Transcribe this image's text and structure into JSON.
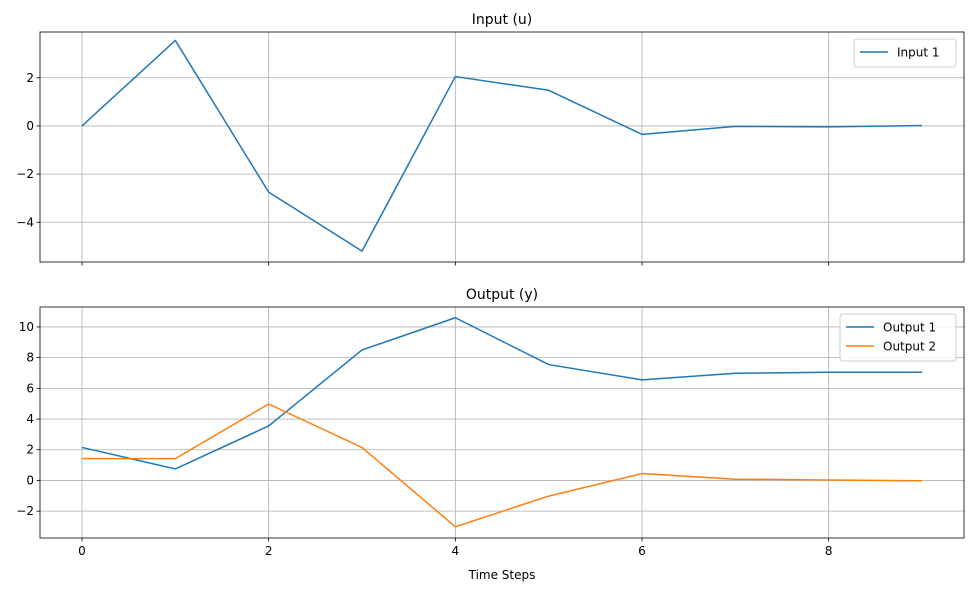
{
  "chart_data": [
    {
      "type": "line",
      "title": "Input (u)",
      "xlabel": "",
      "ylabel": "",
      "x": [
        0,
        1,
        2,
        3,
        4,
        5,
        6,
        7,
        8,
        9
      ],
      "xlim": [
        -0.45,
        9.45
      ],
      "ylim": [
        -5.65,
        3.9
      ],
      "xticks": [
        0,
        2,
        4,
        6,
        8
      ],
      "yticks": [
        -4,
        -2,
        0,
        2
      ],
      "show_xtick_labels": false,
      "grid": true,
      "legend": "top-right",
      "series": [
        {
          "name": "Input 1",
          "color": "#1f77b4",
          "values": [
            0.0,
            3.55,
            -2.75,
            -5.2,
            2.05,
            1.48,
            -0.35,
            -0.02,
            -0.04,
            0.02
          ]
        }
      ]
    },
    {
      "type": "line",
      "title": "Output (y)",
      "xlabel": "Time Steps",
      "ylabel": "",
      "x": [
        0,
        1,
        2,
        3,
        4,
        5,
        6,
        7,
        8,
        9
      ],
      "xlim": [
        -0.45,
        9.45
      ],
      "ylim": [
        -3.75,
        11.3
      ],
      "xticks": [
        0,
        2,
        4,
        6,
        8
      ],
      "yticks": [
        -2,
        0,
        2,
        4,
        6,
        8,
        10
      ],
      "show_xtick_labels": true,
      "grid": true,
      "legend": "top-right",
      "series": [
        {
          "name": "Output 1",
          "color": "#1f77b4",
          "values": [
            2.15,
            0.75,
            3.55,
            8.5,
            10.6,
            7.55,
            6.55,
            6.98,
            7.05,
            7.05
          ]
        },
        {
          "name": "Output 2",
          "color": "#ff7f0e",
          "values": [
            1.42,
            1.42,
            4.98,
            2.15,
            -3.02,
            -1.02,
            0.45,
            0.08,
            0.03,
            -0.02
          ]
        }
      ]
    }
  ]
}
